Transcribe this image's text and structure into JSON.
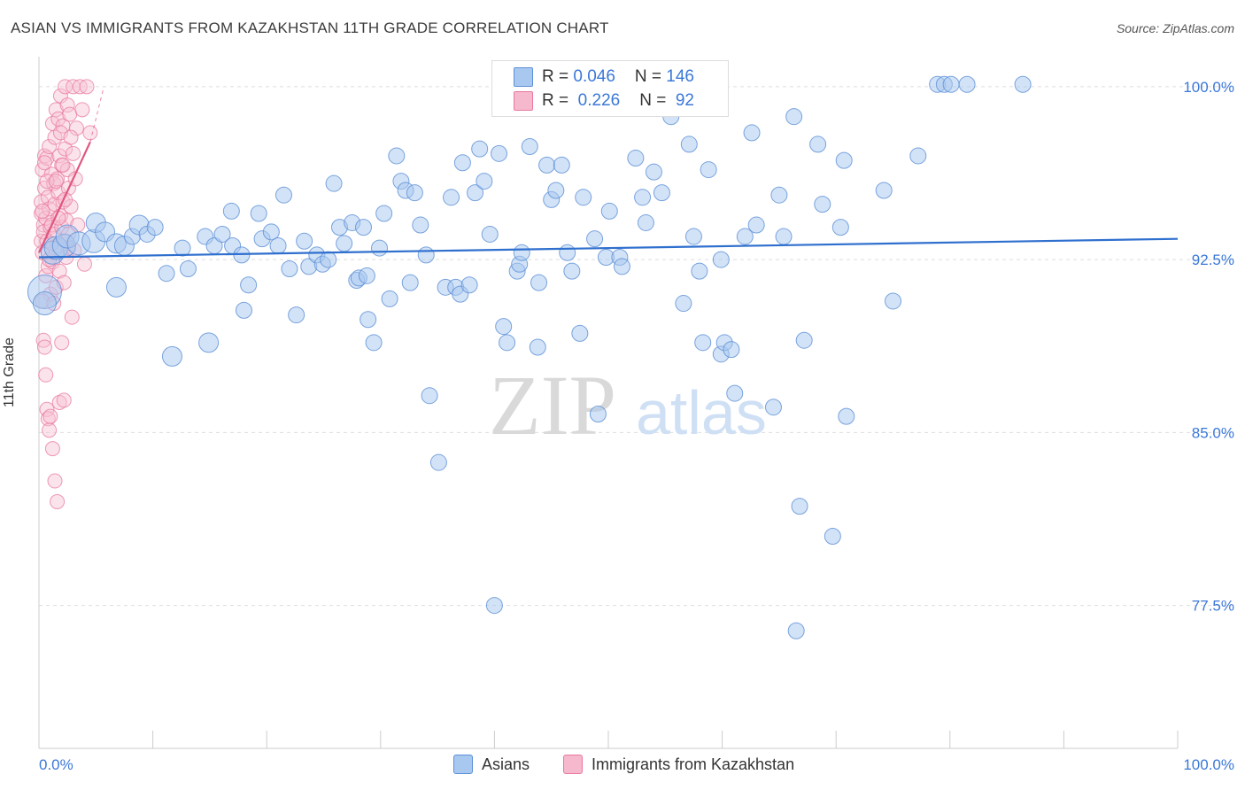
{
  "header": {
    "title": "ASIAN VS IMMIGRANTS FROM KAZAKHSTAN 11TH GRADE CORRELATION CHART",
    "source": "Source: ZipAtlas.com"
  },
  "watermark": {
    "zip": "ZIP",
    "atlas": "atlas"
  },
  "legend_top": {
    "rows": [
      {
        "r_label": "R = ",
        "r_value": "0.046",
        "n_label": "N = ",
        "n_value": "146",
        "color": "#a8c8f0"
      },
      {
        "r_label": "R = ",
        "r_value": " 0.226",
        "n_label": "N = ",
        "n_value": " 92",
        "color": "#f5b8cc"
      }
    ]
  },
  "legend_bottom": {
    "items": [
      {
        "label": "Asians",
        "color": "#a8c8f0"
      },
      {
        "label": "Immigrants from Kazakhstan",
        "color": "#f5b8cc"
      }
    ]
  },
  "colors": {
    "asian_fill": "#a8c8f0",
    "asian_stroke": "#5b8fd6",
    "asian_trend": "#2f6fce",
    "kaz_fill": "#f7c0d2",
    "kaz_stroke": "#e8789f",
    "kaz_trend": "#e0567f",
    "grid": "#dddddd",
    "axis_label": "#3b78d8"
  },
  "chart_data": {
    "type": "scatter",
    "title": "ASIAN VS IMMIGRANTS FROM KAZAKHSTAN 11TH GRADE CORRELATION CHART",
    "xlabel": "",
    "ylabel": "11th Grade",
    "xlim": [
      0,
      100
    ],
    "ylim": [
      71.3,
      101.3
    ],
    "x_tick_labels": [
      "0.0%",
      "100.0%"
    ],
    "y_ticks": [
      77.5,
      85.0,
      92.5,
      100.0
    ],
    "y_tick_labels": [
      "77.5%",
      "85.0%",
      "92.5%",
      "100.0%"
    ],
    "grid": "horizontal dashed",
    "legend": "top-center and bottom",
    "series": [
      {
        "name": "Asians",
        "R": 0.046,
        "N": 146,
        "trend": {
          "x": [
            0,
            100
          ],
          "y": [
            92.6,
            93.4
          ]
        },
        "points": [
          [
            0.5,
            91.1,
            3
          ],
          [
            0.5,
            90.6,
            2
          ],
          [
            1.2,
            92.8,
            2
          ],
          [
            1.5,
            93.0,
            2
          ],
          [
            2.2,
            93.1,
            2
          ],
          [
            2.5,
            93.5,
            2
          ],
          [
            3.5,
            93.2,
            2
          ],
          [
            4.8,
            93.3,
            2
          ],
          [
            5.0,
            94.1,
            1.5
          ],
          [
            5.8,
            93.7,
            1.5
          ],
          [
            6.8,
            93.2,
            1.5
          ],
          [
            7.5,
            93.1,
            1.5
          ],
          [
            8.2,
            93.5,
            1
          ],
          [
            8.8,
            94.0,
            1.5
          ],
          [
            9.5,
            93.6,
            1
          ],
          [
            10.2,
            93.9,
            1
          ],
          [
            6.8,
            91.3,
            1.5
          ],
          [
            11.2,
            91.9,
            1
          ],
          [
            11.7,
            88.3,
            1.5
          ],
          [
            12.6,
            93.0,
            1
          ],
          [
            13.1,
            92.1,
            1
          ],
          [
            14.6,
            93.5,
            1
          ],
          [
            14.9,
            88.9,
            1.5
          ],
          [
            15.4,
            93.1,
            1
          ],
          [
            16.1,
            93.6,
            1
          ],
          [
            17.0,
            93.1,
            1
          ],
          [
            16.9,
            94.6,
            1
          ],
          [
            17.8,
            92.7,
            1
          ],
          [
            18.0,
            90.3,
            1
          ],
          [
            18.4,
            91.4,
            1
          ],
          [
            19.3,
            94.5,
            1
          ],
          [
            19.6,
            93.4,
            1
          ],
          [
            20.4,
            93.7,
            1
          ],
          [
            21.0,
            93.1,
            1
          ],
          [
            21.5,
            95.3,
            1
          ],
          [
            22.0,
            92.1,
            1
          ],
          [
            22.6,
            90.1,
            1
          ],
          [
            23.3,
            93.3,
            1
          ],
          [
            23.7,
            92.2,
            1
          ],
          [
            24.4,
            92.7,
            1
          ],
          [
            24.9,
            92.3,
            1
          ],
          [
            25.4,
            92.5,
            1
          ],
          [
            25.9,
            95.8,
            1
          ],
          [
            26.4,
            93.9,
            1
          ],
          [
            26.8,
            93.2,
            1
          ],
          [
            27.5,
            94.1,
            1
          ],
          [
            27.9,
            91.6,
            1
          ],
          [
            28.1,
            91.7,
            1
          ],
          [
            28.5,
            93.9,
            1
          ],
          [
            28.8,
            91.8,
            1
          ],
          [
            28.9,
            89.9,
            1
          ],
          [
            29.4,
            88.9,
            1
          ],
          [
            29.9,
            93.0,
            1
          ],
          [
            30.3,
            94.5,
            1
          ],
          [
            30.8,
            90.8,
            1
          ],
          [
            31.4,
            97.0,
            1
          ],
          [
            31.8,
            95.9,
            1
          ],
          [
            32.2,
            95.5,
            1
          ],
          [
            32.6,
            91.5,
            1
          ],
          [
            33.0,
            95.4,
            1
          ],
          [
            33.5,
            94.0,
            1
          ],
          [
            34.0,
            92.7,
            1
          ],
          [
            34.3,
            86.6,
            1
          ],
          [
            35.1,
            83.7,
            1
          ],
          [
            35.7,
            91.3,
            1
          ],
          [
            36.2,
            95.2,
            1
          ],
          [
            36.6,
            91.3,
            1
          ],
          [
            37.0,
            91.0,
            1
          ],
          [
            37.2,
            96.7,
            1
          ],
          [
            37.8,
            91.4,
            1
          ],
          [
            38.3,
            95.4,
            1
          ],
          [
            38.7,
            97.3,
            1
          ],
          [
            39.1,
            95.9,
            1
          ],
          [
            39.6,
            93.6,
            1
          ],
          [
            40.0,
            77.5,
            1
          ],
          [
            40.4,
            97.1,
            1
          ],
          [
            40.8,
            89.6,
            1
          ],
          [
            41.1,
            88.9,
            1
          ],
          [
            42.0,
            92.0,
            1
          ],
          [
            42.2,
            92.3,
            1
          ],
          [
            42.4,
            92.8,
            1
          ],
          [
            43.1,
            97.4,
            1
          ],
          [
            43.8,
            88.7,
            1
          ],
          [
            43.9,
            91.5,
            1
          ],
          [
            44.6,
            96.6,
            1
          ],
          [
            45.0,
            95.1,
            1
          ],
          [
            45.4,
            95.5,
            1
          ],
          [
            45.9,
            96.6,
            1
          ],
          [
            46.4,
            92.8,
            1
          ],
          [
            46.8,
            92.0,
            1
          ],
          [
            47.5,
            89.3,
            1
          ],
          [
            47.8,
            95.2,
            1
          ],
          [
            48.8,
            93.4,
            1
          ],
          [
            49.1,
            85.8,
            1
          ],
          [
            49.8,
            92.6,
            1
          ],
          [
            50.1,
            94.6,
            1
          ],
          [
            51.0,
            92.6,
            1
          ],
          [
            51.2,
            92.2,
            1
          ],
          [
            52.4,
            96.9,
            1
          ],
          [
            53.0,
            95.2,
            1
          ],
          [
            53.3,
            94.1,
            1
          ],
          [
            54.0,
            96.3,
            1
          ],
          [
            54.7,
            95.4,
            1
          ],
          [
            55.5,
            98.7,
            1
          ],
          [
            56.6,
            90.6,
            1
          ],
          [
            57.1,
            97.5,
            1
          ],
          [
            57.5,
            93.5,
            1
          ],
          [
            58.0,
            92.0,
            1
          ],
          [
            58.3,
            88.9,
            1
          ],
          [
            58.8,
            96.4,
            1
          ],
          [
            59.9,
            92.5,
            1
          ],
          [
            59.9,
            88.4,
            1
          ],
          [
            60.2,
            88.9,
            1
          ],
          [
            60.8,
            88.6,
            1
          ],
          [
            61.1,
            86.7,
            1
          ],
          [
            62.0,
            93.5,
            1
          ],
          [
            62.6,
            98.0,
            1
          ],
          [
            63.0,
            94.0,
            1
          ],
          [
            64.5,
            86.1,
            1
          ],
          [
            65.0,
            95.3,
            1
          ],
          [
            65.4,
            93.5,
            1
          ],
          [
            66.3,
            98.7,
            1
          ],
          [
            66.8,
            81.8,
            1
          ],
          [
            67.2,
            89.0,
            1
          ],
          [
            68.4,
            97.5,
            1
          ],
          [
            68.8,
            94.9,
            1
          ],
          [
            69.7,
            80.5,
            1
          ],
          [
            70.4,
            93.9,
            1
          ],
          [
            70.7,
            96.8,
            1
          ],
          [
            70.9,
            85.7,
            1
          ],
          [
            74.2,
            95.5,
            1
          ],
          [
            75.0,
            90.7,
            1
          ],
          [
            77.2,
            97.0,
            1
          ],
          [
            78.9,
            100.1,
            1
          ],
          [
            79.5,
            100.1,
            1
          ],
          [
            80.1,
            100.1,
            1
          ],
          [
            81.5,
            100.1,
            1
          ],
          [
            86.4,
            100.1,
            1
          ],
          [
            66.5,
            76.4,
            1
          ]
        ]
      },
      {
        "name": "Immigrants from Kazakhstan",
        "R": 0.226,
        "N": 92,
        "trend": {
          "x": [
            0,
            4.5
          ],
          "y": [
            92.8,
            97.6
          ]
        },
        "points": [
          [
            0.2,
            94.5
          ],
          [
            0.2,
            93.3
          ],
          [
            0.2,
            95.0
          ],
          [
            0.3,
            96.4
          ],
          [
            0.3,
            92.8
          ],
          [
            0.4,
            94.0
          ],
          [
            0.4,
            93.7
          ],
          [
            0.5,
            97.0
          ],
          [
            0.5,
            95.6
          ],
          [
            0.6,
            94.3
          ],
          [
            0.6,
            91.8
          ],
          [
            0.7,
            93.3
          ],
          [
            0.7,
            96.9
          ],
          [
            0.8,
            95.2
          ],
          [
            0.8,
            92.2
          ],
          [
            0.9,
            94.7
          ],
          [
            0.9,
            97.4
          ],
          [
            1.0,
            93.9
          ],
          [
            1.0,
            91.0
          ],
          [
            1.1,
            96.2
          ],
          [
            1.1,
            94.0
          ],
          [
            1.2,
            98.4
          ],
          [
            1.2,
            92.4
          ],
          [
            1.3,
            95.8
          ],
          [
            1.3,
            93.6
          ],
          [
            1.4,
            97.8
          ],
          [
            1.4,
            94.9
          ],
          [
            1.5,
            91.3
          ],
          [
            1.5,
            99.0
          ],
          [
            1.6,
            96.0
          ],
          [
            1.6,
            93.1
          ],
          [
            1.7,
            95.4
          ],
          [
            1.7,
            98.6
          ],
          [
            1.8,
            92.0
          ],
          [
            1.8,
            97.0
          ],
          [
            1.9,
            94.4
          ],
          [
            1.9,
            99.6
          ],
          [
            2.0,
            96.6
          ],
          [
            2.0,
            93.9
          ],
          [
            2.1,
            98.3
          ],
          [
            2.1,
            95.0
          ],
          [
            2.2,
            91.5
          ],
          [
            2.3,
            97.3
          ],
          [
            2.3,
            100.0
          ],
          [
            2.4,
            94.2
          ],
          [
            2.4,
            92.6
          ],
          [
            2.5,
            96.4
          ],
          [
            2.5,
            99.2
          ],
          [
            2.6,
            95.6
          ],
          [
            2.6,
            93.0
          ],
          [
            2.7,
            98.8
          ],
          [
            2.8,
            94.8
          ],
          [
            2.9,
            90.0
          ],
          [
            3.0,
            97.1
          ],
          [
            3.0,
            100.0
          ],
          [
            3.1,
            92.9
          ],
          [
            3.2,
            96.0
          ],
          [
            3.3,
            98.2
          ],
          [
            3.4,
            94.0
          ],
          [
            3.6,
            100.0
          ],
          [
            3.8,
            99.0
          ],
          [
            4.0,
            92.3
          ],
          [
            4.2,
            100.0
          ],
          [
            4.5,
            98.0
          ],
          [
            0.3,
            90.7
          ],
          [
            0.4,
            89.0
          ],
          [
            0.5,
            88.7
          ],
          [
            0.6,
            87.5
          ],
          [
            0.7,
            86.0
          ],
          [
            0.8,
            85.6
          ],
          [
            0.9,
            85.1
          ],
          [
            1.0,
            85.7
          ],
          [
            1.2,
            84.3
          ],
          [
            1.4,
            82.9
          ],
          [
            1.6,
            82.0
          ],
          [
            1.8,
            86.3
          ],
          [
            2.0,
            88.9
          ],
          [
            2.2,
            86.4
          ],
          [
            2.4,
            93.3
          ],
          [
            0.3,
            94.6
          ],
          [
            0.5,
            96.7
          ],
          [
            0.7,
            95.9
          ],
          [
            0.9,
            92.5
          ],
          [
            1.1,
            93.2
          ],
          [
            1.3,
            90.6
          ],
          [
            1.5,
            95.9
          ],
          [
            1.7,
            94.3
          ],
          [
            1.9,
            98.0
          ],
          [
            2.1,
            96.6
          ],
          [
            2.3,
            95.1
          ],
          [
            2.6,
            93.6
          ],
          [
            2.8,
            97.8
          ]
        ]
      }
    ]
  }
}
